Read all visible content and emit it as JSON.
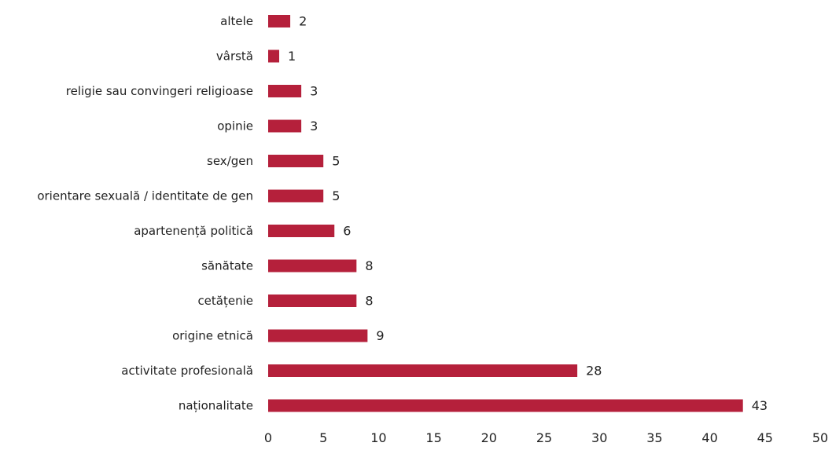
{
  "chart_data": {
    "type": "bar",
    "orientation": "horizontal",
    "categories": [
      "altele",
      "vârstă",
      "religie sau convingeri religioase",
      "opinie",
      "sex/gen",
      "orientare sexuală / identitate de gen",
      "apartenență politică",
      "sănătate",
      "cetățenie",
      "origine etnică",
      "activitate profesională",
      "naționalitate"
    ],
    "values": [
      2,
      1,
      3,
      3,
      5,
      5,
      6,
      8,
      8,
      9,
      28,
      43
    ],
    "xlim": [
      0,
      50
    ],
    "x_ticks": [
      0,
      5,
      10,
      15,
      20,
      25,
      30,
      35,
      40,
      45,
      50
    ],
    "grid": false,
    "bar_color": "#b5203b",
    "title": "",
    "xlabel": "",
    "ylabel": ""
  }
}
